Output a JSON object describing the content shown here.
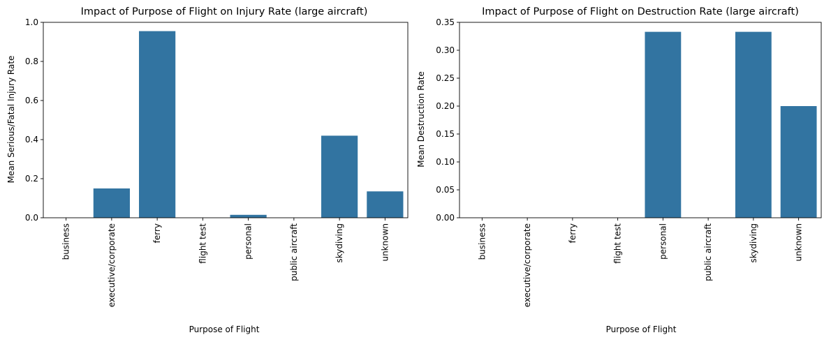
{
  "chart_data": [
    {
      "type": "bar",
      "title": "Impact of Purpose of Flight on Injury Rate (large aircraft)",
      "xlabel": "Purpose of Flight",
      "ylabel": "Mean Serious/Fatal Injury Rate",
      "categories": [
        "business",
        "executive/corporate",
        "ferry",
        "flight test",
        "personal",
        "public aircraft",
        "skydiving",
        "unknown"
      ],
      "values": [
        0.0,
        0.15,
        0.955,
        0.0,
        0.015,
        0.0,
        0.42,
        0.135
      ],
      "ylim": [
        0,
        1.0
      ],
      "yticks": [
        "0.0",
        "0.2",
        "0.4",
        "0.6",
        "0.8",
        "1.0"
      ],
      "ytick_values": [
        0,
        0.2,
        0.4,
        0.6,
        0.8,
        1.0
      ],
      "bar_color": "#3274a1",
      "grid": false
    },
    {
      "type": "bar",
      "title": "Impact of Purpose of Flight on Destruction Rate (large aircraft)",
      "xlabel": "Purpose of Flight",
      "ylabel": "Mean Destruction Rate",
      "categories": [
        "business",
        "executive/corporate",
        "ferry",
        "flight test",
        "personal",
        "public aircraft",
        "skydiving",
        "unknown"
      ],
      "values": [
        0.0,
        0.0,
        0.0,
        0.0,
        0.333,
        0.0,
        0.333,
        0.2
      ],
      "ylim": [
        0,
        0.35
      ],
      "yticks": [
        "0.00",
        "0.05",
        "0.10",
        "0.15",
        "0.20",
        "0.25",
        "0.30",
        "0.35"
      ],
      "ytick_values": [
        0,
        0.05,
        0.1,
        0.15,
        0.2,
        0.25,
        0.3,
        0.35
      ],
      "bar_color": "#3274a1",
      "grid": false
    }
  ]
}
